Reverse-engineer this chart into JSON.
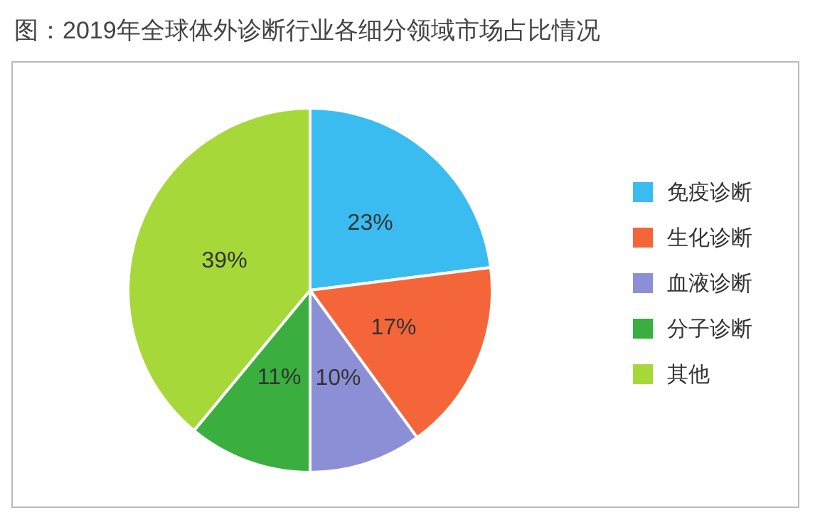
{
  "chart_data": {
    "type": "pie",
    "title": "图：2019年全球体外诊断行业各细分领域市场占比情况",
    "categories": [
      "免疫诊断",
      "生化诊断",
      "血液诊断",
      "分子诊断",
      "其他"
    ],
    "values": [
      23,
      17,
      10,
      11,
      39
    ],
    "colors": [
      "#3bbcf0",
      "#f4663a",
      "#8d8fd6",
      "#3aae3e",
      "#a6d83a"
    ],
    "value_labels": [
      "23%",
      "17%",
      "10%",
      "11%",
      "39%"
    ],
    "legend": "right"
  }
}
